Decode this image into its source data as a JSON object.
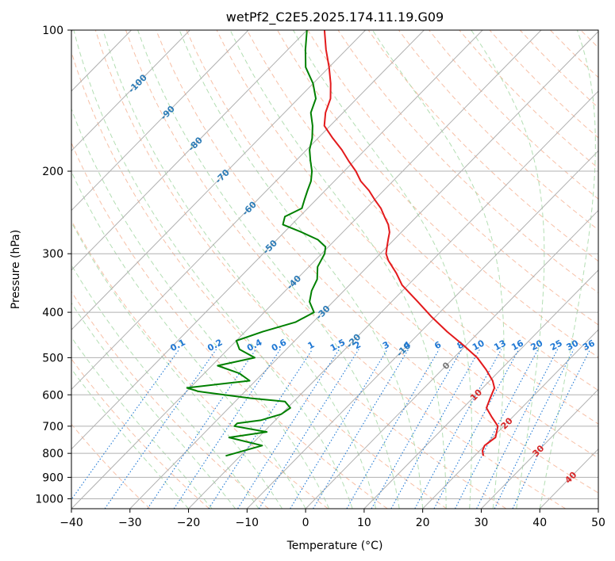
{
  "chart_data": {
    "type": "line",
    "title": "wetPf2_C2E5.2025.174.11.19.G09",
    "xlabel": "Temperature (°C)",
    "ylabel": "Pressure (hPa)",
    "xlim": [
      -40,
      50
    ],
    "ylim": [
      1050,
      100
    ],
    "y_scale": "log",
    "skew": true,
    "grid": true,
    "x_ticks": [
      -40,
      -30,
      -20,
      -10,
      0,
      10,
      20,
      30,
      40,
      50
    ],
    "y_ticks": [
      100,
      200,
      300,
      400,
      500,
      600,
      700,
      800,
      900,
      1000
    ],
    "colors": {
      "temperature": "#e31a1c",
      "dewpoint": "#008000",
      "dry_adiabat": "#f4a582",
      "moist_adiabat": "#a6d8a6",
      "mixing_ratio": "#1f78d4",
      "isotherm_label_cold": "#2c7bb6",
      "isotherm_label_warm": "#d62728",
      "grid": "#b0b0b0"
    },
    "series": [
      {
        "kind": "temperature",
        "pressure": [
          810,
          790,
          770,
          740,
          700,
          670,
          640,
          610,
          580,
          560,
          530,
          500,
          470,
          440,
          410,
          380,
          350,
          330,
          310,
          300,
          290,
          280,
          270,
          260,
          250,
          240,
          230,
          220,
          210,
          200,
          190,
          180,
          170,
          160,
          150,
          140,
          130,
          120,
          110,
          100
        ],
        "values": [
          21.5,
          20.5,
          20.0,
          20.5,
          19.0,
          16.5,
          14.0,
          13.0,
          12.0,
          10.5,
          7.5,
          4.0,
          -0.5,
          -5.5,
          -10.5,
          -15.5,
          -21.0,
          -24.0,
          -27.5,
          -29.0,
          -30.0,
          -31.0,
          -32.0,
          -33.5,
          -35.5,
          -37.5,
          -40.0,
          -42.5,
          -45.5,
          -48.0,
          -51.0,
          -54.0,
          -57.5,
          -61.0,
          -63.0,
          -64.5,
          -67.0,
          -70.0,
          -73.5,
          -77.0
        ]
      },
      {
        "kind": "dewpoint",
        "pressure": [
          810,
          770,
          740,
          720,
          700,
          690,
          680,
          660,
          640,
          620,
          610,
          600,
          590,
          580,
          570,
          560,
          540,
          520,
          500,
          480,
          460,
          440,
          420,
          400,
          380,
          360,
          340,
          320,
          300,
          290,
          280,
          270,
          260,
          250,
          240,
          230,
          220,
          210,
          200,
          190,
          180,
          170,
          160,
          150,
          140,
          130,
          120,
          110,
          100
        ],
        "values": [
          -22.5,
          -18.0,
          -25.0,
          -19.5,
          -26.0,
          -26.0,
          -22.5,
          -20.0,
          -19.5,
          -21.5,
          -28.0,
          -33.0,
          -38.0,
          -40.5,
          -36.0,
          -31.0,
          -34.0,
          -39.0,
          -34.0,
          -38.0,
          -40.0,
          -37.0,
          -33.0,
          -31.5,
          -34.0,
          -35.5,
          -36.5,
          -38.5,
          -39.5,
          -40.5,
          -43.0,
          -47.0,
          -51.5,
          -52.5,
          -51.0,
          -52.0,
          -53.0,
          -54.0,
          -55.5,
          -57.5,
          -59.5,
          -61.0,
          -63.0,
          -65.5,
          -67.0,
          -70.0,
          -74.0,
          -77.0,
          -80.0
        ]
      }
    ],
    "isotherm_labels": [
      "-100",
      "-90",
      "-80",
      "-70",
      "-60",
      "-50",
      "-40",
      "-30",
      "-20",
      "-10",
      "0",
      "10",
      "20",
      "30",
      "40"
    ],
    "isotherm_label_values": [
      -100,
      -90,
      -80,
      -70,
      -60,
      -50,
      -40,
      -30,
      -20,
      -10,
      0,
      10,
      20,
      30,
      40
    ],
    "mixing_ratio_labels": [
      "0.1",
      "0.2",
      "0.4",
      "0.6",
      "1",
      "1.5",
      "2",
      "3",
      "4",
      "6",
      "8",
      "10",
      "13",
      "16",
      "20",
      "25",
      "30",
      "36"
    ],
    "mixing_ratio_values": [
      0.1,
      0.2,
      0.4,
      0.6,
      1,
      1.5,
      2,
      3,
      4,
      6,
      8,
      10,
      13,
      16,
      20,
      25,
      30,
      36
    ]
  }
}
